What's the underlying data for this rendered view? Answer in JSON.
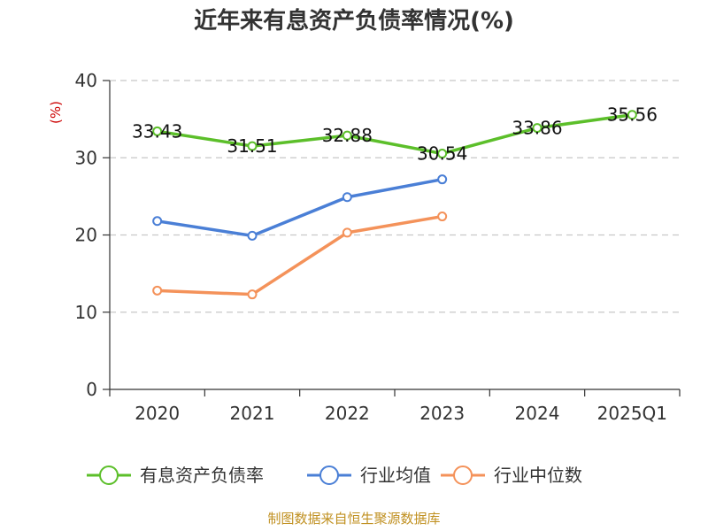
{
  "chart_data": {
    "type": "line",
    "title": "近年来有息资产负债率情况(%)",
    "ylabel": "(%)",
    "categories": [
      "2020",
      "2021",
      "2022",
      "2023",
      "2024",
      "2025Q1"
    ],
    "ylim": [
      0,
      40
    ],
    "yticks": [
      0,
      10,
      20,
      30,
      40
    ],
    "grid": true,
    "legend_position": "bottom",
    "series": [
      {
        "name": "有息资产负债率",
        "color": "#5cbf2a",
        "values": [
          33.43,
          31.51,
          32.88,
          30.54,
          33.86,
          35.56
        ],
        "labels": [
          "33.43",
          "31.51",
          "32.88",
          "30.54",
          "33.86",
          "35.56"
        ]
      },
      {
        "name": "行业均值",
        "color": "#4a7fd6",
        "values": [
          21.8,
          19.9,
          24.9,
          27.2,
          null,
          null
        ]
      },
      {
        "name": "行业中位数",
        "color": "#f4925a",
        "values": [
          12.8,
          12.3,
          20.3,
          22.4,
          null,
          null
        ]
      }
    ],
    "source": "制图数据来自恒生聚源数据库"
  }
}
